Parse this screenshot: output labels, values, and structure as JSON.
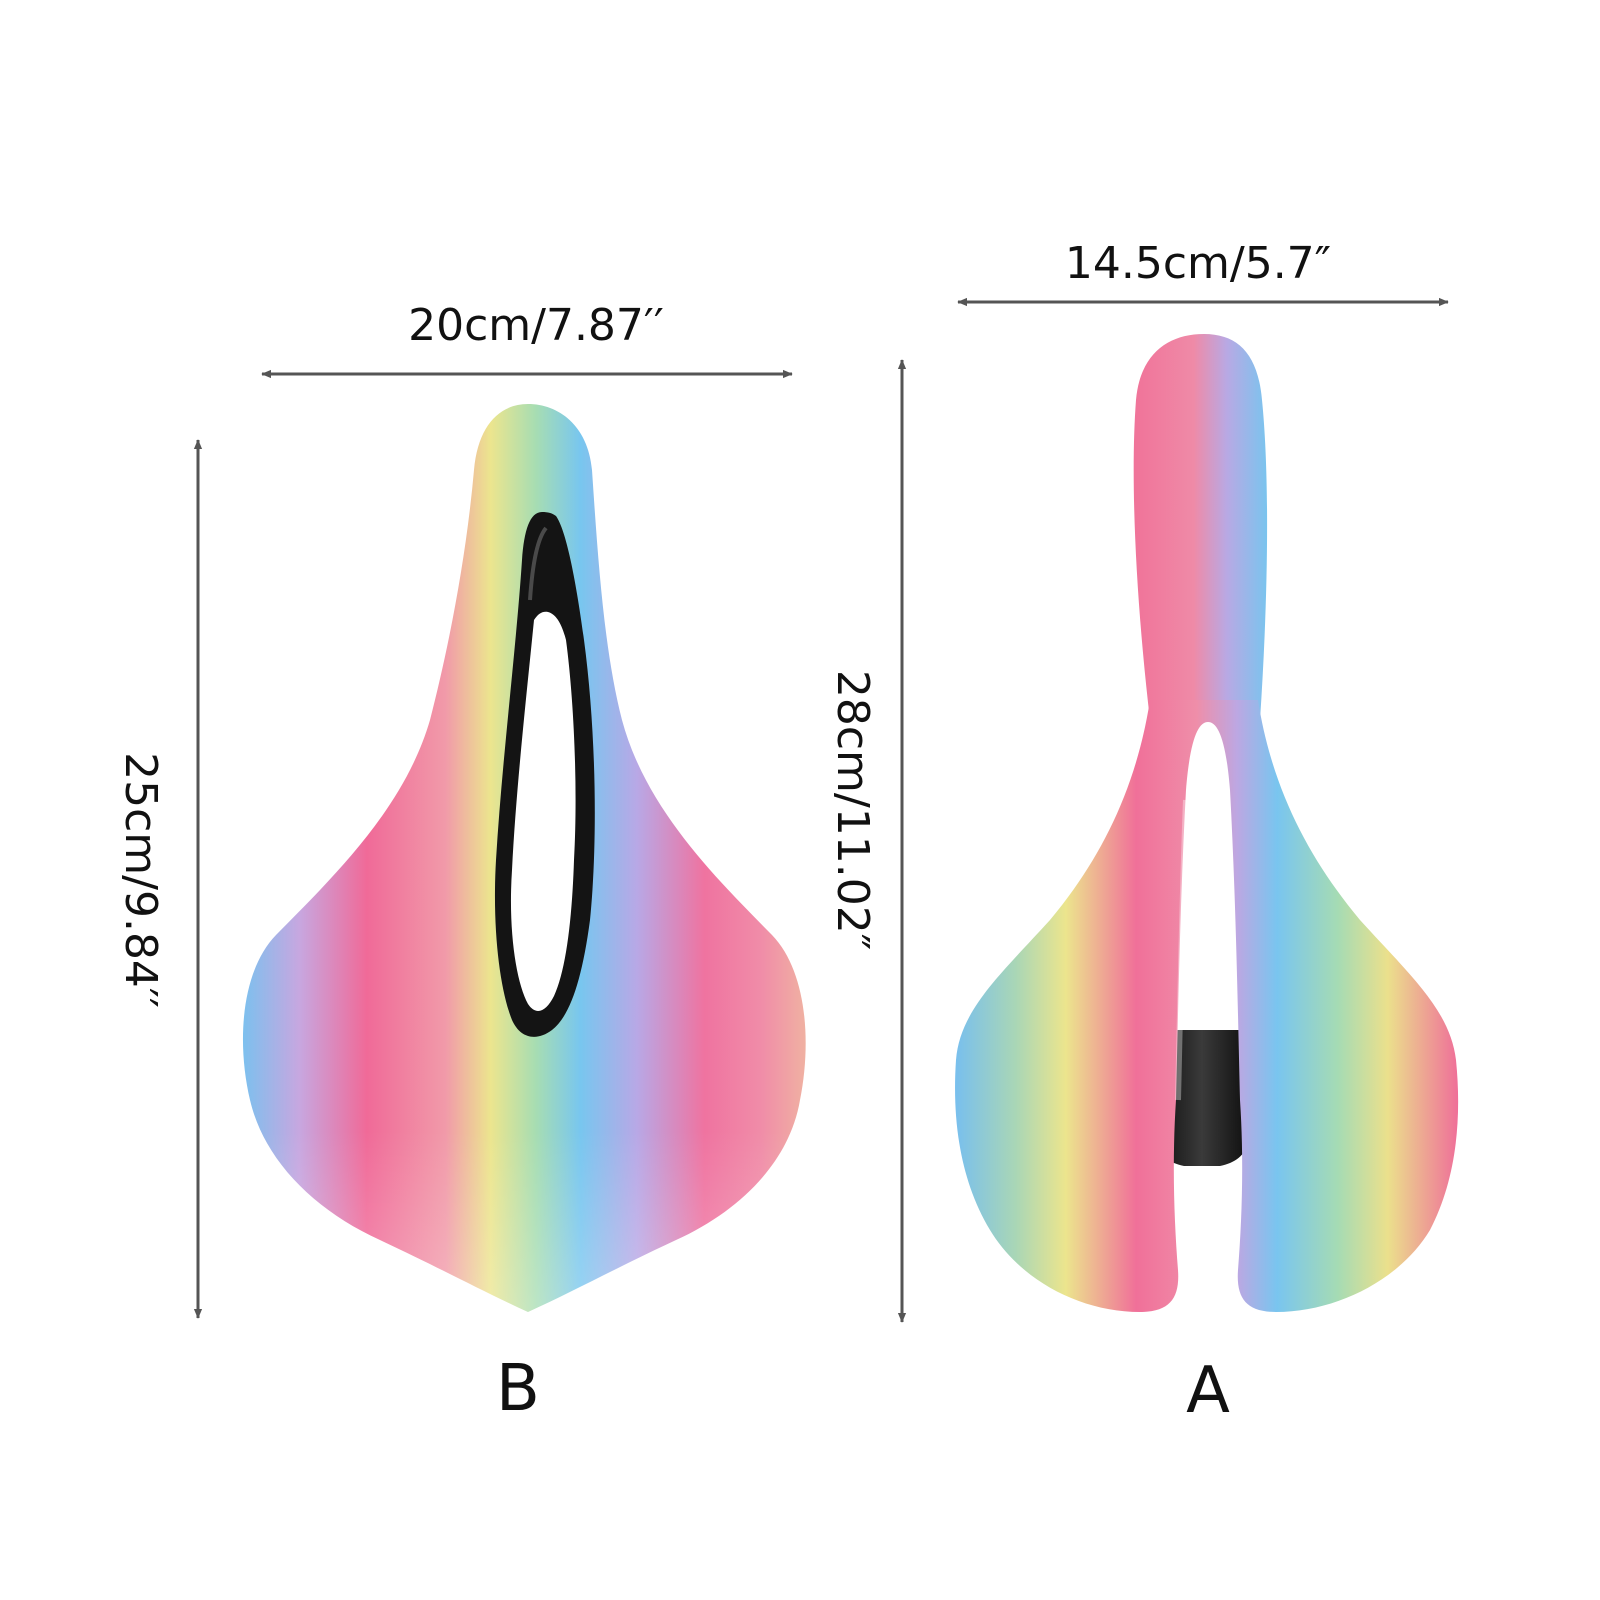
{
  "saddle_b": {
    "label": "B",
    "width": "20cm/7.87′′",
    "length": "25cm/9.84′′"
  },
  "saddle_a": {
    "label": "A",
    "width": "14.5cm/5.7″",
    "length": "28cm/11.02″"
  },
  "colors": {
    "pink": "#ee6b95",
    "yellow": "#e9e58f",
    "green": "#a8ddb0",
    "blue": "#75c3ee",
    "lavender": "#b9a8e3",
    "shell": "#1a1a1a",
    "arrow": "#555555"
  }
}
